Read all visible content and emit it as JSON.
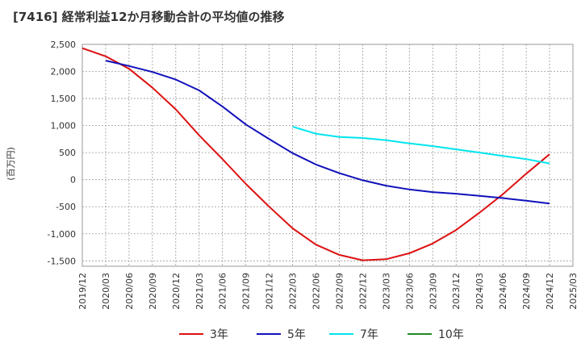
{
  "chart_data": {
    "type": "line",
    "title": "[7416]  経常利益12か月移動合計の平均値の推移",
    "ylabel": "(百万円)",
    "xlabel": "",
    "ylim": [
      -1600,
      2500
    ],
    "yticks": [
      2500,
      2000,
      1500,
      1000,
      500,
      0,
      -500,
      -1000,
      -1500
    ],
    "ytick_labels": [
      "2,500",
      "2,000",
      "1,500",
      "1,000",
      "500",
      "0",
      "-500",
      "-1,000",
      "-1,500"
    ],
    "xticks": [
      "2019/12",
      "2020/03",
      "2020/06",
      "2020/09",
      "2020/12",
      "2021/03",
      "2021/06",
      "2021/09",
      "2021/12",
      "2022/03",
      "2022/06",
      "2022/09",
      "2022/12",
      "2023/03",
      "2023/06",
      "2023/09",
      "2023/12",
      "2024/03",
      "2024/06",
      "2024/09",
      "2024/12",
      "2025/03"
    ],
    "grid": true,
    "legend_position": "bottom",
    "series": [
      {
        "name": "3年",
        "color": "#dd1111",
        "points": [
          [
            "2019/12",
            2430
          ],
          [
            "2020/03",
            2280
          ],
          [
            "2020/06",
            2050
          ],
          [
            "2020/09",
            1700
          ],
          [
            "2020/12",
            1300
          ],
          [
            "2021/03",
            820
          ],
          [
            "2021/06",
            380
          ],
          [
            "2021/09",
            -80
          ],
          [
            "2021/12",
            -500
          ],
          [
            "2022/03",
            -900
          ],
          [
            "2022/06",
            -1200
          ],
          [
            "2022/09",
            -1390
          ],
          [
            "2022/12",
            -1490
          ],
          [
            "2023/03",
            -1470
          ],
          [
            "2023/06",
            -1360
          ],
          [
            "2023/09",
            -1180
          ],
          [
            "2023/12",
            -930
          ],
          [
            "2024/03",
            -610
          ],
          [
            "2024/06",
            -270
          ],
          [
            "2024/09",
            110
          ],
          [
            "2024/12",
            470
          ]
        ]
      },
      {
        "name": "5年",
        "color": "#1111bb",
        "points": [
          [
            "2020/03",
            2200
          ],
          [
            "2020/06",
            2100
          ],
          [
            "2020/09",
            1990
          ],
          [
            "2020/12",
            1850
          ],
          [
            "2021/03",
            1650
          ],
          [
            "2021/06",
            1350
          ],
          [
            "2021/09",
            1020
          ],
          [
            "2021/12",
            750
          ],
          [
            "2022/03",
            490
          ],
          [
            "2022/06",
            280
          ],
          [
            "2022/09",
            120
          ],
          [
            "2022/12",
            -10
          ],
          [
            "2023/03",
            -110
          ],
          [
            "2023/06",
            -180
          ],
          [
            "2023/09",
            -230
          ],
          [
            "2023/12",
            -260
          ],
          [
            "2024/03",
            -300
          ],
          [
            "2024/06",
            -340
          ],
          [
            "2024/09",
            -390
          ],
          [
            "2024/12",
            -440
          ]
        ]
      },
      {
        "name": "7年",
        "color": "#00e5ee",
        "points": [
          [
            "2022/03",
            980
          ],
          [
            "2022/06",
            850
          ],
          [
            "2022/09",
            790
          ],
          [
            "2022/12",
            770
          ],
          [
            "2023/03",
            730
          ],
          [
            "2023/06",
            670
          ],
          [
            "2023/09",
            620
          ],
          [
            "2023/12",
            560
          ],
          [
            "2024/03",
            500
          ],
          [
            "2024/06",
            440
          ],
          [
            "2024/09",
            380
          ],
          [
            "2024/12",
            300
          ]
        ]
      },
      {
        "name": "10年",
        "color": "#228822",
        "points": []
      }
    ]
  }
}
